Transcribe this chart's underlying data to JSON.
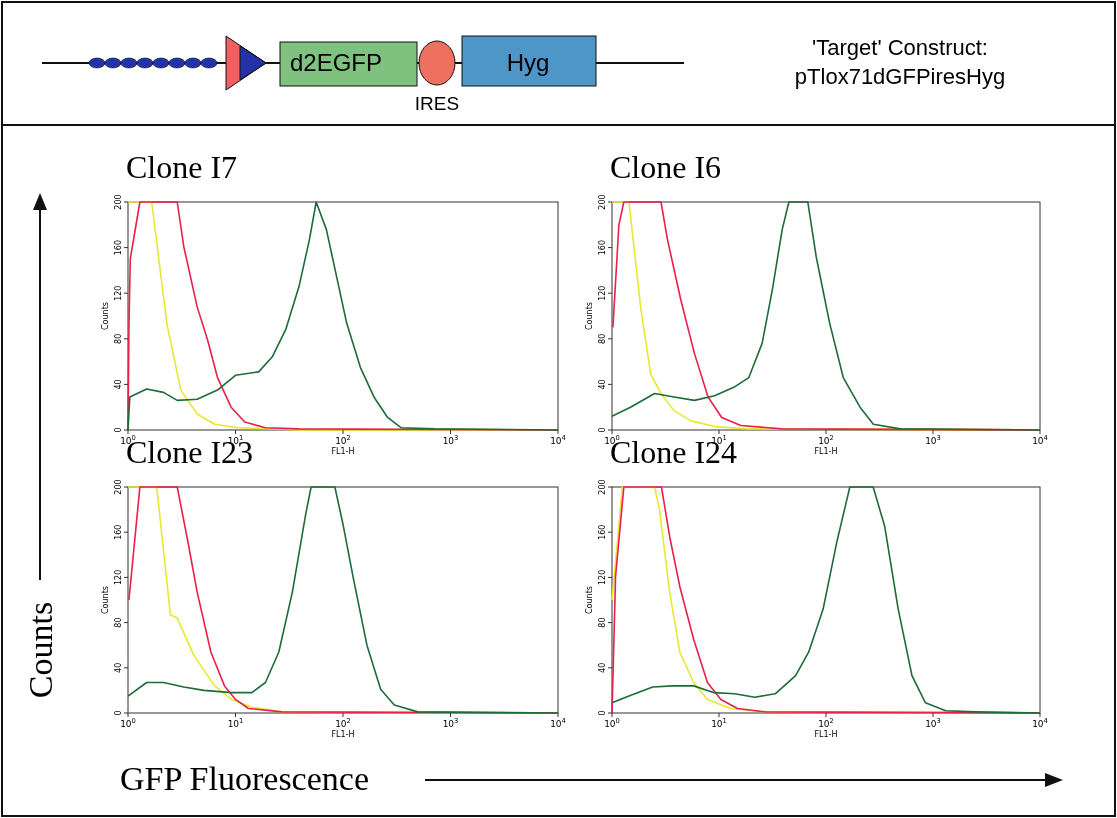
{
  "chart_data": [
    {
      "type": "other",
      "annotations": [
        "'Target' Construct:",
        "pTlox71dGFPiresHyg",
        "d2EGFP",
        "Hyg",
        "IRES",
        "Counts",
        "GFP Fluorescence"
      ]
    },
    {
      "type": "line",
      "title": "Clone I7",
      "xlabel": "FL1-H",
      "ylabel": "Counts",
      "log": "x",
      "xlim": [
        1,
        10000
      ],
      "ylim": [
        0,
        200
      ],
      "grid": false,
      "xticks": [
        {
          "value": 1,
          "label": "10$^{0}$"
        },
        {
          "value": 10,
          "label": "10$^{1}$"
        },
        {
          "value": 100,
          "label": "10$^{2}$"
        },
        {
          "value": 1000,
          "label": "10$^{3}$"
        },
        {
          "value": 10000,
          "label": "10$^{4}$"
        }
      ],
      "yticks": [
        0,
        40,
        80,
        120,
        160,
        200
      ],
      "series": [
        {
          "color": "#e8e830",
          "x": [
            1,
            1.66,
            2.3,
            3.1,
            4.4,
            6.4,
            10.6,
            39,
            10000
          ],
          "values": [
            200,
            200,
            93,
            35,
            14,
            5,
            2,
            0,
            0
          ]
        },
        {
          "color": "#e8204a",
          "x": [
            1,
            1.02,
            1.05,
            1.29,
            2.87,
            3.3,
            4.4,
            5.5,
            6.8,
            9.1,
            12.2,
            19,
            39,
            10000
          ],
          "values": [
            0,
            90,
            150,
            200,
            200,
            161,
            108,
            79,
            46,
            20,
            7,
            2,
            1,
            0
          ]
        },
        {
          "color": "#1e6b3a",
          "x": [
            1,
            1.04,
            1.49,
            2.14,
            2.87,
            4.4,
            6.8,
            10,
            16.4,
            21.9,
            29.3,
            39,
            48.7,
            56.3,
            70,
            87,
            108,
            145,
            194,
            260,
            346,
            713,
            10000
          ],
          "values": [
            0,
            29,
            36,
            33,
            26,
            27,
            35,
            48,
            51,
            64,
            88,
            126,
            167,
            200,
            176,
            135,
            94,
            55,
            29,
            11,
            2,
            1,
            0
          ]
        }
      ]
    },
    {
      "type": "line",
      "title": "Clone I6",
      "xlabel": "FL1-H",
      "ylabel": "Counts",
      "log": "x",
      "xlim": [
        1,
        10000
      ],
      "ylim": [
        0,
        200
      ],
      "grid": false,
      "xticks": [
        {
          "value": 1,
          "label": "10$^{0}$"
        },
        {
          "value": 10,
          "label": "10$^{1}$"
        },
        {
          "value": 100,
          "label": "10$^{2}$"
        },
        {
          "value": 1000,
          "label": "10$^{3}$"
        },
        {
          "value": 10000,
          "label": "10$^{4}$"
        }
      ],
      "yticks": [
        0,
        40,
        80,
        120,
        160,
        200
      ],
      "series": [
        {
          "color": "#e8e830",
          "x": [
            1,
            1.44,
            1.85,
            2.3,
            2.87,
            3.8,
            5.5,
            9.1,
            19,
            10000
          ],
          "values": [
            200,
            200,
            108,
            49,
            32,
            17,
            8,
            3,
            1,
            0
          ]
        },
        {
          "color": "#e8204a",
          "x": [
            1.02,
            1.16,
            1.29,
            2.87,
            3.3,
            4.4,
            5.9,
            7.9,
            10.6,
            16,
            39,
            10000
          ],
          "values": [
            90,
            180,
            200,
            200,
            167,
            114,
            67,
            29,
            11,
            4,
            1,
            0
          ]
        },
        {
          "color": "#1e6b3a",
          "x": [
            1,
            1.49,
            2.5,
            3.8,
            5.9,
            9.1,
            14.1,
            19,
            25.3,
            31.5,
            39,
            45,
            67.6,
            81,
            108,
            145,
            208,
            277,
            496,
            10000
          ],
          "values": [
            12,
            20,
            32,
            29,
            26,
            30,
            38,
            46,
            76,
            123,
            176,
            200,
            200,
            152,
            94,
            46,
            20,
            5,
            1,
            0
          ]
        }
      ]
    },
    {
      "type": "line",
      "title": "Clone I23",
      "xlabel": "FL1-H",
      "ylabel": "Counts",
      "log": "x",
      "xlim": [
        1,
        10000
      ],
      "ylim": [
        0,
        200
      ],
      "grid": false,
      "xticks": [
        {
          "value": 1,
          "label": "10$^{0}$"
        },
        {
          "value": 10,
          "label": "10$^{1}$"
        },
        {
          "value": 100,
          "label": "10$^{2}$"
        },
        {
          "value": 1000,
          "label": "10$^{3}$"
        },
        {
          "value": 10000,
          "label": "10$^{4}$"
        }
      ],
      "yticks": [
        0,
        40,
        80,
        120,
        160,
        200
      ],
      "series": [
        {
          "color": "#e8e830",
          "x": [
            1,
            1.85,
            2.48,
            2.87,
            4.1,
            6.4,
            9.2,
            14.2,
            27,
            10000
          ],
          "values": [
            200,
            200,
            87,
            84,
            51,
            24,
            12,
            5,
            1,
            0
          ]
        },
        {
          "color": "#e8204a",
          "x": [
            1.02,
            1.29,
            2.87,
            3.6,
            4.4,
            5.9,
            7.9,
            10,
            13.2,
            27,
            10000
          ],
          "values": [
            100,
            200,
            200,
            152,
            107,
            54,
            24,
            12,
            4,
            1,
            0
          ]
        },
        {
          "color": "#1e6b3a",
          "x": [
            1,
            1.49,
            2.14,
            3.3,
            5.1,
            9.2,
            14.2,
            19,
            25.3,
            33.8,
            45,
            50.5,
            84,
            100,
            125,
            167,
            224,
            300,
            496,
            10000
          ],
          "values": [
            15,
            27,
            27,
            23,
            20,
            18,
            18,
            27,
            54,
            107,
            176,
            200,
            200,
            167,
            119,
            60,
            21,
            7,
            1,
            0
          ]
        }
      ]
    },
    {
      "type": "line",
      "title": "Clone I24",
      "xlabel": "FL1-H",
      "ylabel": "Counts",
      "log": "x",
      "xlim": [
        1,
        10000
      ],
      "ylim": [
        0,
        200
      ],
      "grid": false,
      "xticks": [
        {
          "value": 1,
          "label": "10$^{0}$"
        },
        {
          "value": 10,
          "label": "10$^{1}$"
        },
        {
          "value": 100,
          "label": "10$^{2}$"
        },
        {
          "value": 1000,
          "label": "10$^{3}$"
        },
        {
          "value": 10000,
          "label": "10$^{4}$"
        }
      ],
      "yticks": [
        0,
        40,
        80,
        120,
        160,
        200
      ],
      "series": [
        {
          "color": "#e8e830",
          "x": [
            1,
            1.12,
            1.25,
            2.5,
            2.78,
            3.46,
            4.3,
            5.8,
            7.8,
            12.9,
            27,
            10000
          ],
          "values": [
            100,
            150,
            200,
            200,
            180,
            107,
            54,
            27,
            12,
            4,
            1,
            0
          ]
        },
        {
          "color": "#e8204a",
          "x": [
            1,
            1.08,
            1.29,
            2.9,
            3.46,
            4.3,
            5.8,
            7.8,
            10.4,
            14.9,
            27,
            10000
          ],
          "values": [
            0,
            121,
            200,
            200,
            156,
            112,
            65,
            27,
            12,
            4,
            1,
            0
          ]
        },
        {
          "color": "#1e6b3a",
          "x": [
            1,
            1.44,
            2.4,
            3.7,
            5.8,
            9,
            14,
            21.6,
            33.5,
            52,
            69,
            94,
            126,
            167,
            276,
            354,
            473,
            636,
            850,
            1315,
            2500,
            10000
          ],
          "values": [
            9,
            15,
            23,
            24,
            24,
            18,
            17,
            14,
            17,
            33,
            54,
            92,
            151,
            200,
            200,
            165,
            92,
            33,
            9,
            2,
            1,
            0
          ]
        }
      ]
    }
  ]
}
